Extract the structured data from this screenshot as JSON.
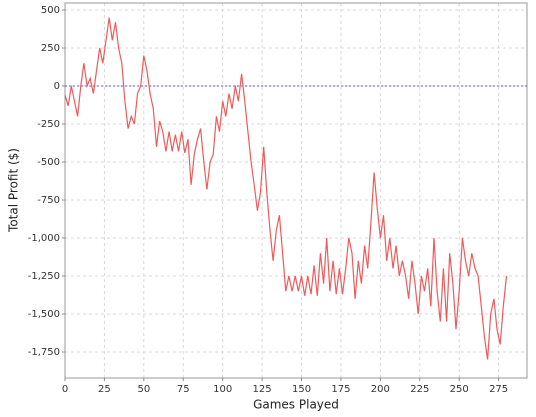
{
  "chart_data": {
    "type": "line",
    "x_label": "Games Played",
    "y_label": "Total Profit ($)",
    "x": [
      0,
      2,
      4,
      6,
      8,
      10,
      12,
      14,
      16,
      18,
      20,
      22,
      24,
      26,
      28,
      30,
      32,
      34,
      36,
      38,
      40,
      42,
      44,
      46,
      48,
      50,
      52,
      54,
      56,
      58,
      60,
      62,
      64,
      66,
      68,
      70,
      72,
      74,
      76,
      78,
      80,
      82,
      84,
      86,
      88,
      90,
      92,
      94,
      96,
      98,
      100,
      102,
      104,
      106,
      108,
      110,
      112,
      114,
      116,
      118,
      120,
      122,
      124,
      126,
      128,
      130,
      132,
      134,
      136,
      138,
      140,
      142,
      144,
      146,
      148,
      150,
      152,
      154,
      156,
      158,
      160,
      162,
      164,
      166,
      168,
      170,
      172,
      174,
      176,
      178,
      180,
      182,
      184,
      186,
      188,
      190,
      192,
      194,
      196,
      198,
      200,
      202,
      204,
      206,
      208,
      210,
      212,
      214,
      216,
      218,
      220,
      222,
      224,
      226,
      228,
      230,
      232,
      234,
      236,
      238,
      240,
      242,
      244,
      246,
      248,
      250,
      252,
      254,
      256,
      258,
      260,
      262,
      264,
      266,
      268,
      270,
      272,
      274,
      276,
      278,
      280
    ],
    "series": [
      {
        "name": "Total Profit",
        "color": "#f05a5a",
        "values": [
          -60,
          -130,
          0,
          -100,
          -200,
          0,
          150,
          0,
          50,
          -50,
          100,
          250,
          150,
          300,
          450,
          300,
          420,
          250,
          150,
          -100,
          -280,
          -200,
          -250,
          -50,
          0,
          200,
          100,
          -50,
          -150,
          -400,
          -230,
          -300,
          -430,
          -300,
          -430,
          -320,
          -430,
          -300,
          -440,
          -350,
          -650,
          -450,
          -350,
          -280,
          -500,
          -680,
          -500,
          -450,
          -200,
          -300,
          -100,
          -200,
          -50,
          -150,
          0,
          -100,
          80,
          -100,
          -300,
          -500,
          -650,
          -820,
          -700,
          -400,
          -700,
          -950,
          -1150,
          -950,
          -850,
          -1100,
          -1350,
          -1250,
          -1350,
          -1250,
          -1350,
          -1250,
          -1380,
          -1250,
          -1370,
          -1180,
          -1380,
          -1100,
          -1300,
          -1000,
          -1350,
          -1150,
          -1370,
          -1200,
          -1370,
          -1200,
          -1000,
          -1100,
          -1400,
          -1150,
          -1300,
          -1050,
          -1200,
          -900,
          -570,
          -800,
          -1000,
          -850,
          -1150,
          -1000,
          -1200,
          -1050,
          -1250,
          -1150,
          -1250,
          -1400,
          -1150,
          -1300,
          -1500,
          -1250,
          -1350,
          -1200,
          -1450,
          -1000,
          -1350,
          -1550,
          -1200,
          -1550,
          -1100,
          -1300,
          -1600,
          -1350,
          -1000,
          -1150,
          -1250,
          -1100,
          -1200,
          -1250,
          -1450,
          -1650,
          -1800,
          -1500,
          -1400,
          -1600,
          -1700,
          -1450,
          -1250
        ]
      }
    ],
    "xlim": [
      0,
      293
    ],
    "ylim": [
      -1921,
      546
    ],
    "xticks": [
      0,
      25,
      50,
      75,
      100,
      125,
      150,
      175,
      200,
      225,
      250,
      275
    ],
    "yticks": [
      500,
      250,
      0,
      -250,
      -500,
      -750,
      {
        "value": -1000,
        "label": "-1,000"
      },
      {
        "value": -1250,
        "label": "-1,250"
      },
      {
        "value": -1500,
        "label": "-1,500"
      },
      {
        "value": -1750,
        "label": "-1,750"
      }
    ],
    "grid": true,
    "reference_line": {
      "value": 0,
      "color": "#5050ff"
    }
  }
}
